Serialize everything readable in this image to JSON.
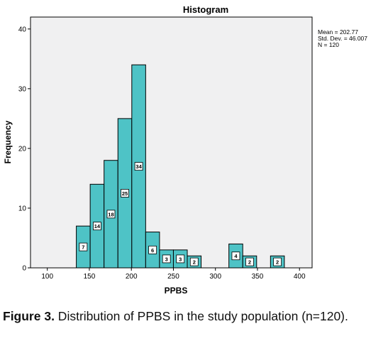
{
  "chart_data": {
    "type": "bar",
    "title": "Histogram",
    "xlabel": "PPBS",
    "ylabel": "Frequency",
    "xlim": [
      80,
      415
    ],
    "ylim": [
      0,
      42
    ],
    "x_ticks": [
      100,
      150,
      200,
      250,
      300,
      350,
      400
    ],
    "y_ticks": [
      0,
      10,
      20,
      30,
      40
    ],
    "grid": false,
    "bin_width": 16.5,
    "bins": [
      {
        "start": 134.5,
        "end": 151.0,
        "value": 7
      },
      {
        "start": 151.0,
        "end": 167.5,
        "value": 14
      },
      {
        "start": 167.5,
        "end": 184.0,
        "value": 18
      },
      {
        "start": 184.0,
        "end": 200.5,
        "value": 25
      },
      {
        "start": 200.5,
        "end": 217.0,
        "value": 34
      },
      {
        "start": 217.0,
        "end": 233.5,
        "value": 6
      },
      {
        "start": 233.5,
        "end": 250.0,
        "value": 3
      },
      {
        "start": 250.0,
        "end": 266.5,
        "value": 3
      },
      {
        "start": 266.5,
        "end": 283.0,
        "value": 2
      },
      {
        "start": 316.0,
        "end": 332.5,
        "value": 4
      },
      {
        "start": 332.5,
        "end": 349.0,
        "value": 2
      },
      {
        "start": 365.5,
        "end": 382.0,
        "value": 2
      }
    ],
    "colors": {
      "bar_fill": "#4ec3c6",
      "bar_stroke": "#000000",
      "plot_background": "#f0f0f1"
    }
  },
  "stats": {
    "mean": "Mean = 202.77",
    "std": "Std. Dev. = 46.007",
    "n": "N = 120"
  },
  "caption": {
    "label": "Figure 3.",
    "text": " Distribution of PPBS in the study population (n=120)."
  }
}
